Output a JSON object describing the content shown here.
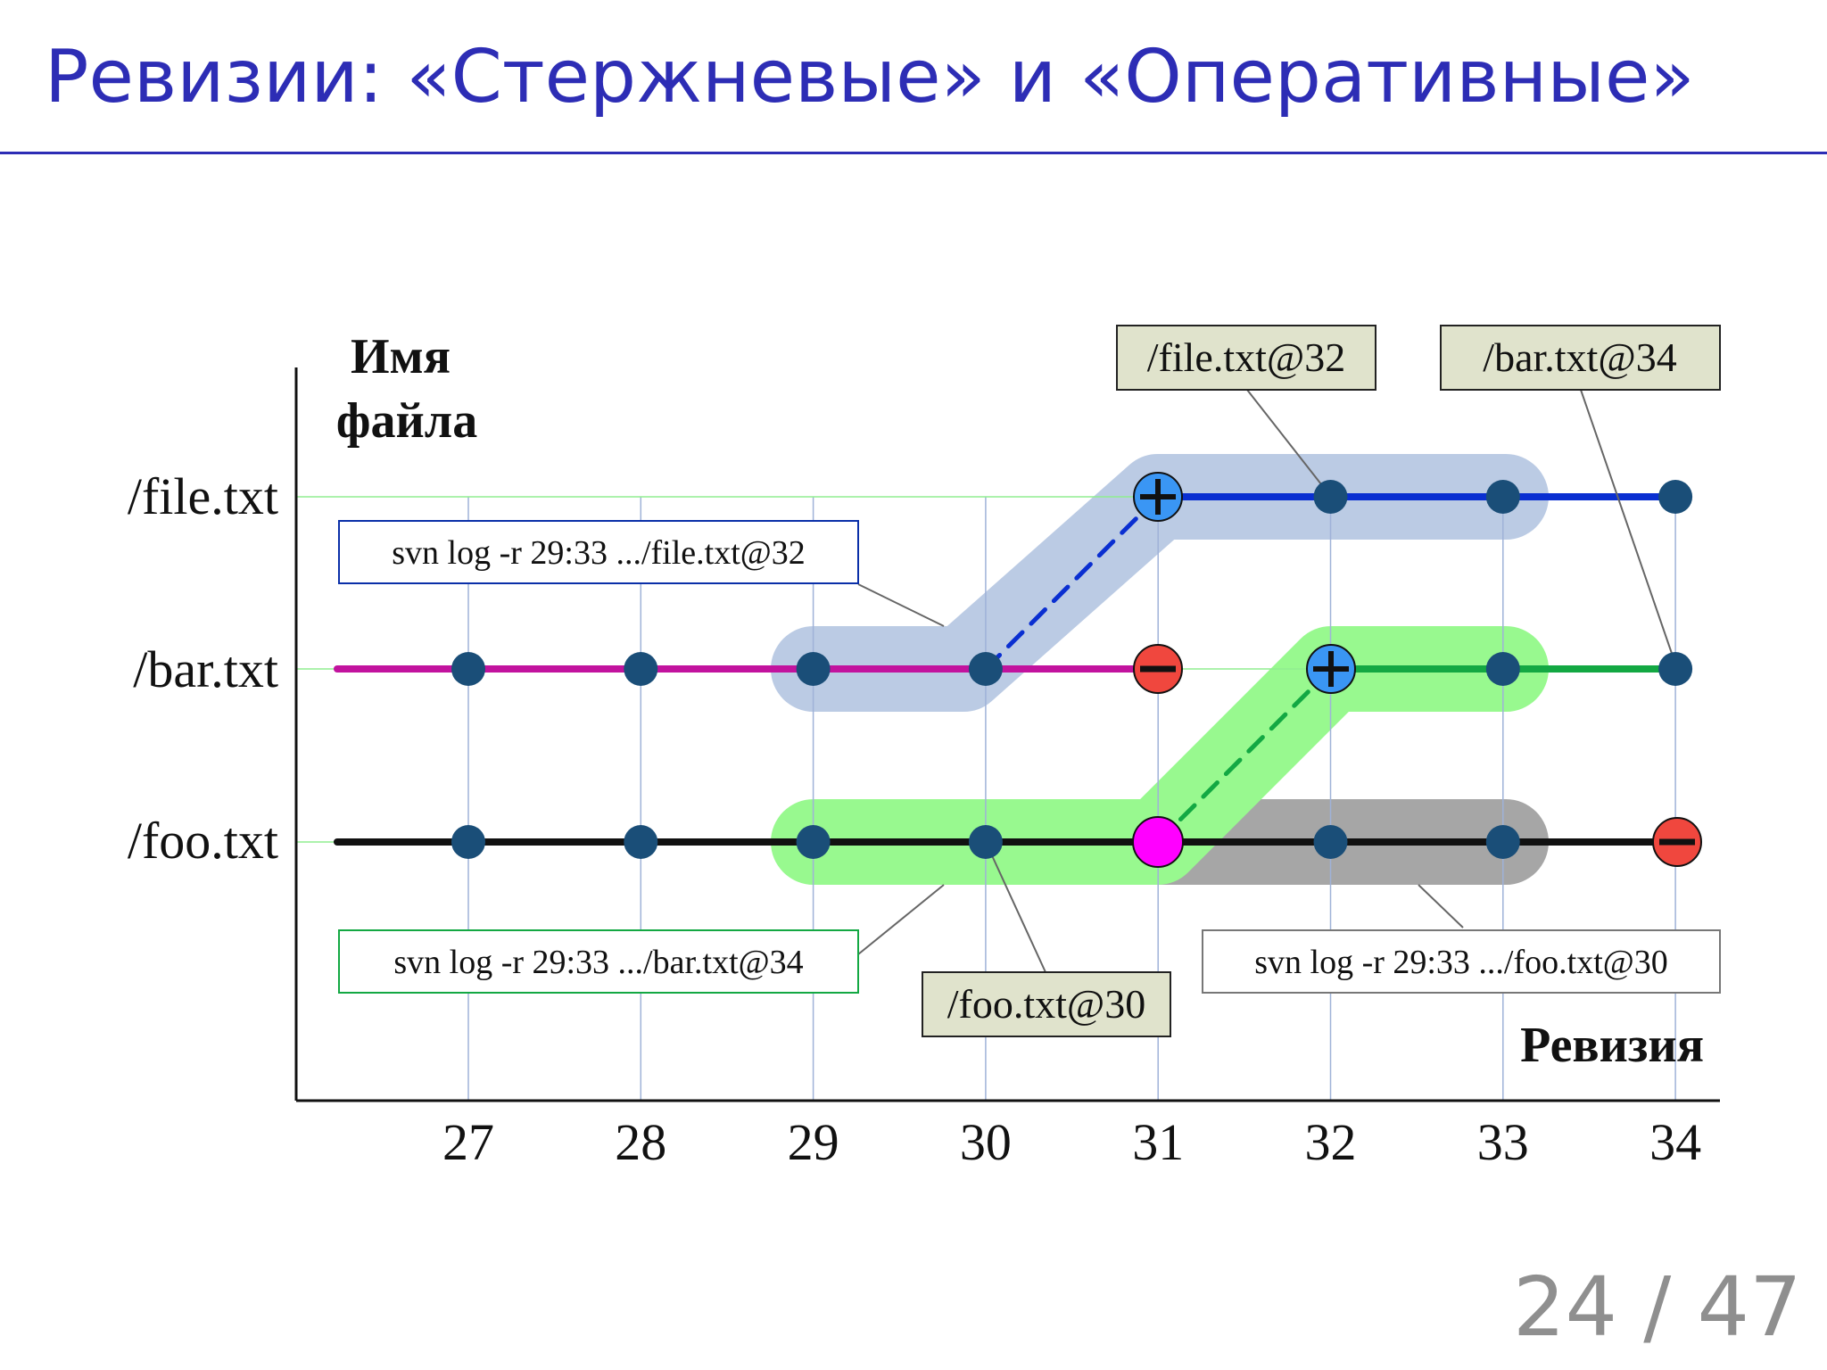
{
  "slide": {
    "title": "Ревизии: «Стержневые» и «Оперативные»",
    "page_number": "24 / 47"
  },
  "diagram": {
    "y_axis_label": [
      "Имя",
      "файла"
    ],
    "x_axis_label": "Ревизия",
    "revisions": [
      "27",
      "28",
      "29",
      "30",
      "31",
      "32",
      "33",
      "34"
    ],
    "files": [
      {
        "name": "/file.txt",
        "line_color": "#0a2fd1"
      },
      {
        "name": "/bar.txt",
        "line_color": "#c2139e"
      },
      {
        "name": "/foo.txt",
        "line_color": "#111111"
      }
    ],
    "bar_green_line_color": "#13a843",
    "commit_dot_color": "#1a4e78",
    "added_marker_color": "#3a96f4",
    "deleted_marker_color": "#f0473e",
    "branch_marker_color": "#ff00ff",
    "highlight_colors": {
      "file_query": "#b7c8e3",
      "bar_query": "#98f98f",
      "foo_query": "#a6a6a6"
    },
    "callouts": {
      "file_peg": "/file.txt@32",
      "bar_peg": "/bar.txt@34",
      "foo_peg": "/foo.txt@30",
      "file_cmd": "svn log -r 29:33 .../file.txt@32",
      "bar_cmd": "svn log -r 29:33 .../bar.txt@34",
      "foo_cmd": "svn log -r 29:33 .../foo.txt@30"
    },
    "callout_colors": {
      "peg_fill": "#e0e3cc",
      "file_cmd_border": "#0a2fa8",
      "bar_cmd_border": "#13a843",
      "foo_cmd_border": "#777777"
    }
  }
}
